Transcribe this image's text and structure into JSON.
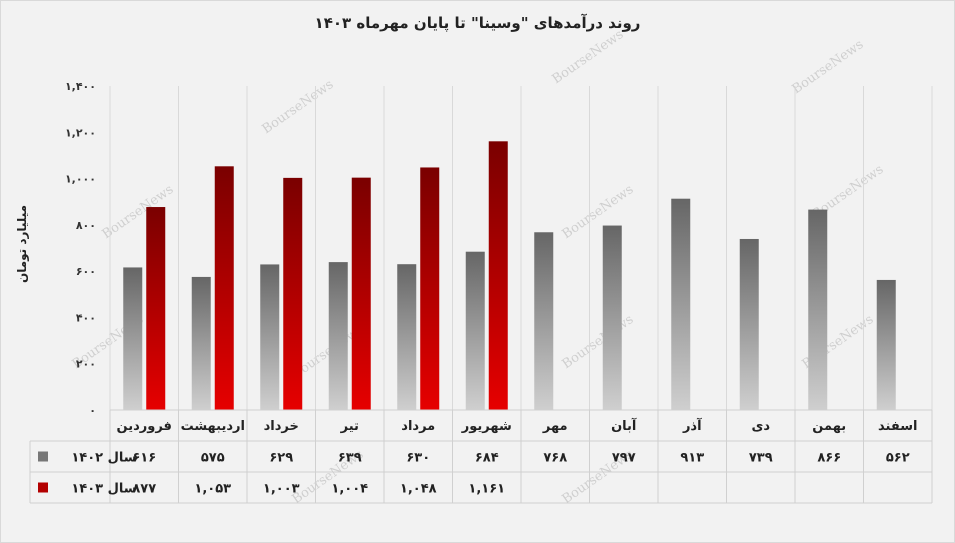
{
  "chart_data": {
    "type": "bar",
    "title": "روند درآمدهای \"وسینا\" تا پایان مهرماه ۱۴۰۳",
    "xlabel": "",
    "ylabel": "میلیارد تومان",
    "ylim": [
      0,
      1400
    ],
    "yticks": [
      0,
      200,
      400,
      600,
      800,
      1000,
      1200,
      1400
    ],
    "ytick_labels": [
      "۰",
      "۲۰۰",
      "۴۰۰",
      "۶۰۰",
      "۸۰۰",
      "۱,۰۰۰",
      "۱,۲۰۰",
      "۱,۴۰۰"
    ],
    "grid": "vertical separators",
    "legend": "data table below chart",
    "watermark": "BourseNews",
    "categories": [
      "فروردین",
      "اردیبهشت",
      "خرداد",
      "تیر",
      "مرداد",
      "شهریور",
      "مهر",
      "آبان",
      "آذر",
      "دی",
      "بهمن",
      "اسفند"
    ],
    "series": [
      {
        "name": "سال ۱۴۰۲",
        "color": "#666666",
        "color_light": "#cfcfcf",
        "values": [
          616,
          575,
          629,
          639,
          630,
          684,
          768,
          797,
          913,
          739,
          866,
          562
        ],
        "labels": [
          "۶۱۶",
          "۵۷۵",
          "۶۲۹",
          "۶۳۹",
          "۶۳۰",
          "۶۸۴",
          "۷۶۸",
          "۷۹۷",
          "۹۱۳",
          "۷۳۹",
          "۸۶۶",
          "۵۶۲"
        ]
      },
      {
        "name": "سال ۱۴۰۳",
        "color": "#7a0000",
        "color_light": "#e60000",
        "values": [
          877,
          1053,
          1003,
          1004,
          1048,
          1161,
          null,
          null,
          null,
          null,
          null,
          null
        ],
        "labels": [
          "۸۷۷",
          "۱,۰۵۳",
          "۱,۰۰۳",
          "۱,۰۰۴",
          "۱,۰۴۸",
          "۱,۱۶۱",
          "",
          "",
          "",
          "",
          "",
          ""
        ]
      }
    ]
  }
}
